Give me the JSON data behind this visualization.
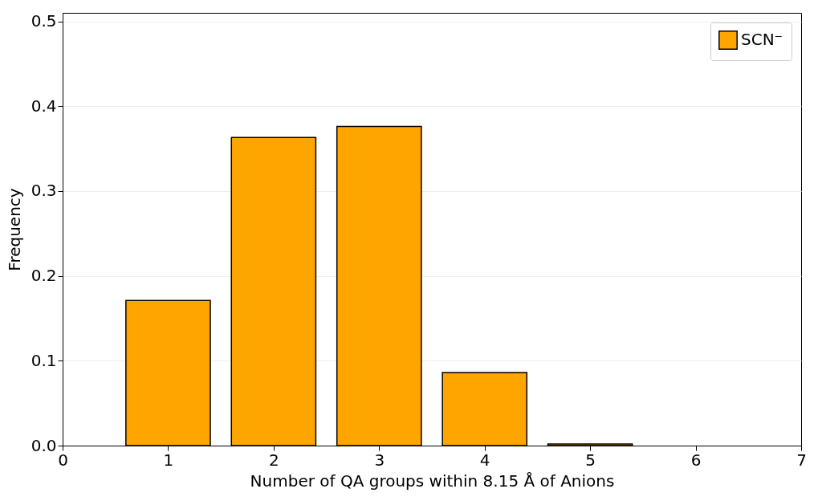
{
  "chart_data": {
    "type": "bar",
    "xlabel": "Number of QA groups within 8.15 Å of Anions",
    "ylabel": "Frequency",
    "x": [
      1,
      2,
      3,
      4,
      5
    ],
    "series": [
      {
        "name": "SCN⁻",
        "color": "#ffa500",
        "values": [
          0.171,
          0.363,
          0.376,
          0.086,
          0.002
        ]
      }
    ],
    "xlim": [
      0,
      7
    ],
    "xticks": [
      0,
      1,
      2,
      3,
      4,
      5,
      6,
      7
    ],
    "ylim": [
      0,
      0.51
    ],
    "yticks": [
      {
        "value": 0,
        "label": "0.0"
      },
      0.1,
      0.2,
      0.3,
      0.4,
      0.5
    ],
    "grid": "y",
    "legend": "top right"
  }
}
